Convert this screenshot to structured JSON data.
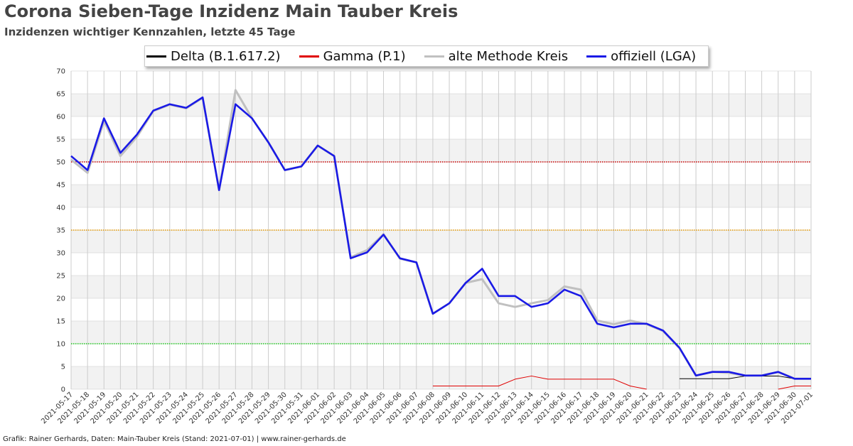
{
  "header": {
    "title": "Corona Sieben-Tage Inzidenz Main Tauber Kreis",
    "subtitle": "Inzidenzen wichtiger Kennzahlen, letzte 45 Tage"
  },
  "footer": {
    "text": "Grafik: Rainer Gerhards, Daten: Main-Tauber Kreis (Stand: 2021-07-01) | www.rainer-gerhards.de"
  },
  "colors": {
    "delta": "#000000",
    "gamma": "#e00000",
    "alt": "#c0c0c0",
    "official": "#1a1ae6",
    "line50": "#cc0000",
    "line35": "#e89a00",
    "line10": "#22cc22",
    "band": "#f2f2f2",
    "grid": "#cccccc"
  },
  "chart_data": {
    "type": "line",
    "grid": true,
    "legend_position": "top-center",
    "ylim": [
      0,
      70
    ],
    "yticks": [
      0,
      5,
      10,
      15,
      20,
      25,
      30,
      35,
      40,
      45,
      50,
      55,
      60,
      65,
      70
    ],
    "threshold_lines": [
      50,
      35,
      10
    ],
    "categories": [
      "2021-05-17",
      "2021-05-18",
      "2021-05-19",
      "2021-05-20",
      "2021-05-21",
      "2021-05-22",
      "2021-05-23",
      "2021-05-24",
      "2021-05-25",
      "2021-05-26",
      "2021-05-27",
      "2021-05-28",
      "2021-05-29",
      "2021-05-30",
      "2021-05-31",
      "2021-06-01",
      "2021-06-02",
      "2021-06-03",
      "2021-06-04",
      "2021-06-05",
      "2021-06-06",
      "2021-06-07",
      "2021-06-08",
      "2021-06-09",
      "2021-06-10",
      "2021-06-11",
      "2021-06-12",
      "2021-06-13",
      "2021-06-14",
      "2021-06-15",
      "2021-06-16",
      "2021-06-17",
      "2021-06-18",
      "2021-06-19",
      "2021-06-20",
      "2021-06-21",
      "2021-06-22",
      "2021-06-23",
      "2021-06-24",
      "2021-06-25",
      "2021-06-26",
      "2021-06-27",
      "2021-06-28",
      "2021-06-29",
      "2021-06-30",
      "2021-07-01"
    ],
    "series": [
      {
        "key": "delta",
        "name": "Delta (B.1.617.2)",
        "values": [
          null,
          null,
          null,
          null,
          null,
          null,
          null,
          null,
          null,
          null,
          null,
          null,
          null,
          null,
          null,
          null,
          null,
          null,
          null,
          null,
          null,
          null,
          null,
          null,
          null,
          null,
          null,
          null,
          null,
          null,
          null,
          null,
          null,
          null,
          null,
          null,
          null,
          2.3,
          2.3,
          2.3,
          2.3,
          2.9,
          2.9,
          2.9,
          2.3,
          2.3
        ]
      },
      {
        "key": "gamma",
        "name": "Gamma (P.1)",
        "values": [
          null,
          null,
          null,
          null,
          null,
          null,
          null,
          null,
          null,
          null,
          null,
          null,
          null,
          null,
          null,
          null,
          null,
          null,
          null,
          null,
          null,
          null,
          0.7,
          0.7,
          0.7,
          0.7,
          0.7,
          2.2,
          2.9,
          2.2,
          2.2,
          2.2,
          2.2,
          2.2,
          0.7,
          0.0,
          null,
          null,
          null,
          null,
          null,
          null,
          null,
          0.0,
          0.7,
          0.7
        ]
      },
      {
        "key": "alt",
        "name": "alte Methode Kreis",
        "values": [
          50.5,
          47.6,
          59.0,
          51.3,
          55.5,
          61.2,
          62.6,
          61.8,
          64.1,
          43.8,
          65.8,
          59.6,
          54.3,
          48.2,
          49.0,
          53.6,
          51.3,
          29.0,
          30.6,
          34.1,
          28.7,
          27.9,
          16.6,
          18.9,
          23.4,
          24.2,
          18.9,
          18.1,
          18.9,
          19.6,
          22.6,
          21.9,
          15.1,
          14.3,
          15.1,
          14.3,
          12.8,
          9.0,
          3.0,
          3.8,
          3.6,
          3.0,
          3.0,
          3.8,
          2.3,
          2.3
        ]
      },
      {
        "key": "official",
        "name": "offiziell (LGA)",
        "values": [
          51.3,
          48.2,
          59.6,
          52.0,
          56.0,
          61.3,
          62.7,
          61.9,
          64.2,
          43.8,
          62.7,
          59.6,
          54.3,
          48.2,
          49.0,
          53.6,
          51.3,
          28.8,
          30.1,
          34.0,
          28.8,
          27.9,
          16.6,
          18.9,
          23.4,
          26.5,
          20.5,
          20.5,
          18.1,
          18.9,
          21.9,
          20.5,
          14.4,
          13.6,
          14.4,
          14.4,
          12.9,
          9.1,
          3.0,
          3.8,
          3.8,
          3.0,
          3.0,
          3.8,
          2.3,
          2.3
        ]
      }
    ]
  }
}
